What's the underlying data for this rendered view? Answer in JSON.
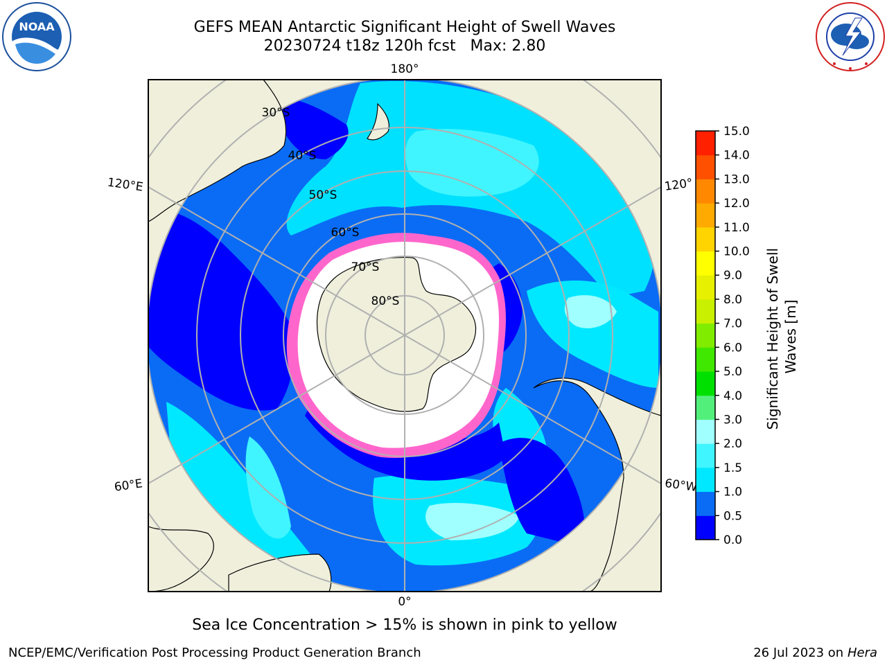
{
  "title": {
    "line1": "GEFS MEAN Antarctic Significant Height of Swell Waves",
    "line2": "20230724 t18z 120h fcst   Max: 2.80"
  },
  "logos": {
    "noaa": {
      "icon": "noaa-logo",
      "text": "NOAA",
      "ring_text": "NATIONAL OCEANIC AND ATMOSPHERIC ADMINISTRATION · U.S. DEPARTMENT OF COMMERCE"
    },
    "nws": {
      "icon": "national-weather-service-logo",
      "ring_text": "NATIONAL WEATHER SERVICE"
    }
  },
  "map": {
    "projection": "south-polar-stereographic",
    "longitude_labels": {
      "top": "180°",
      "bottom": "0°",
      "upper_left": "120°E",
      "upper_right": "120°",
      "lower_left": "60°E",
      "lower_right": "60°W"
    },
    "latitude_labels": [
      "30°S",
      "40°S",
      "50°S",
      "60°S",
      "70°S",
      "80°S"
    ],
    "colors": {
      "land": "#efefdc",
      "ice_white": "#ffffff",
      "ice_edge": "#ff66cc",
      "grid": "#b0b0b0"
    }
  },
  "colorbar": {
    "label": "Significant Height of Swell Waves [m]",
    "ticks": [
      "0.0",
      "0.5",
      "1.0",
      "1.5",
      "2.0",
      "3.0",
      "4.0",
      "5.0",
      "6.0",
      "7.0",
      "8.0",
      "9.0",
      "10.0",
      "11.0",
      "12.0",
      "13.0",
      "14.0",
      "15.0"
    ],
    "colors": [
      "#0000ff",
      "#0a6cf5",
      "#00e8ff",
      "#40f5ff",
      "#a0ffff",
      "#52f07a",
      "#00e000",
      "#40e800",
      "#80ec00",
      "#c8f000",
      "#e6f000",
      "#ffff00",
      "#ffd400",
      "#ffaa00",
      "#ff8800",
      "#ff5000",
      "#ff2000"
    ]
  },
  "footer": {
    "note": "Sea Ice Concentration > 15% is shown in pink to yellow",
    "credit_left": "NCEP/EMC/Verification Post Processing Product Generation Branch",
    "credit_right_prefix": "26 Jul 2023 on ",
    "credit_right_machine": "Hera"
  }
}
